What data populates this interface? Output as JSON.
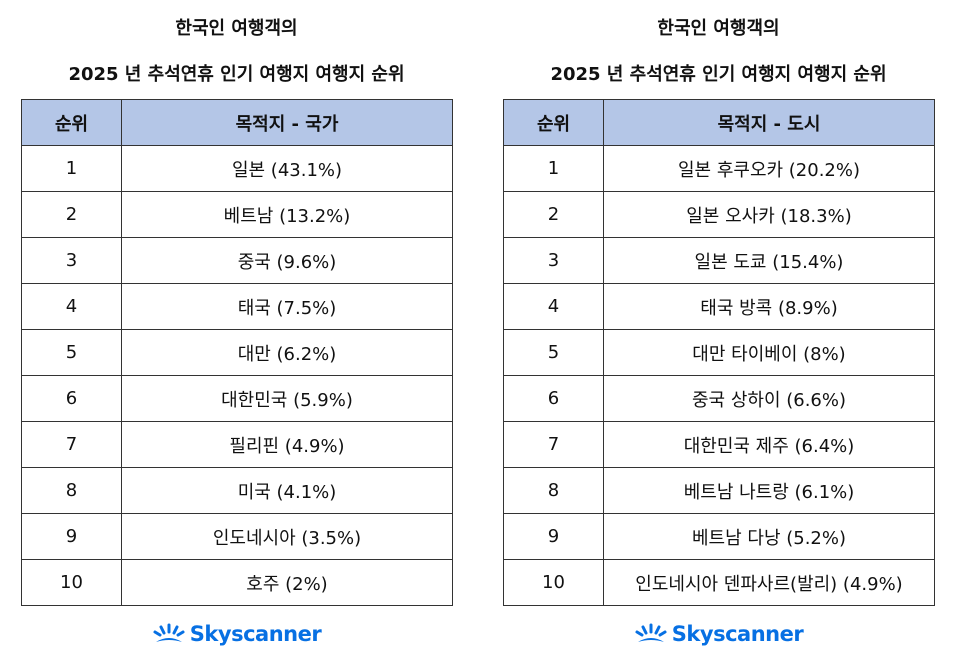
{
  "tables": [
    {
      "title": [
        "한국인 여행객의",
        "2025 년 추석연휴 인기 여행지 여행지 순위"
      ],
      "header": [
        "순위",
        "목적지 - 국가"
      ],
      "rows": [
        [
          "1",
          "일본 (43.1%)"
        ],
        [
          "2",
          "베트남 (13.2%)"
        ],
        [
          "3",
          "중국 (9.6%)"
        ],
        [
          "4",
          "태국 (7.5%)"
        ],
        [
          "5",
          "대만 (6.2%)"
        ],
        [
          "6",
          "대한민국 (5.9%)"
        ],
        [
          "7",
          "필리핀 (4.9%)"
        ],
        [
          "8",
          "미국 (4.1%)"
        ],
        [
          "9",
          "인도네시아 (3.5%)"
        ],
        [
          "10",
          "호주 (2%)"
        ]
      ],
      "logo": "Skyscanner"
    },
    {
      "title": [
        "한국인 여행객의",
        "2025 년 추석연휴 인기 여행지 여행지 순위"
      ],
      "header": [
        "순위",
        "목적지 - 도시"
      ],
      "rows": [
        [
          "1",
          "일본 후쿠오카 (20.2%)"
        ],
        [
          "2",
          "일본 오사카 (18.3%)"
        ],
        [
          "3",
          "일본 도쿄 (15.4%)"
        ],
        [
          "4",
          "태국 방콕 (8.9%)"
        ],
        [
          "5",
          "대만 타이베이 (8%)"
        ],
        [
          "6",
          "중국 상하이 (6.6%)"
        ],
        [
          "7",
          "대한민국 제주 (6.4%)"
        ],
        [
          "8",
          "베트남 나트랑 (6.1%)"
        ],
        [
          "9",
          "베트남 다낭 (5.2%)"
        ],
        [
          "10",
          "인도네시아 덴파사르(발리) (4.9%)"
        ]
      ],
      "logo": "Skyscanner"
    }
  ]
}
